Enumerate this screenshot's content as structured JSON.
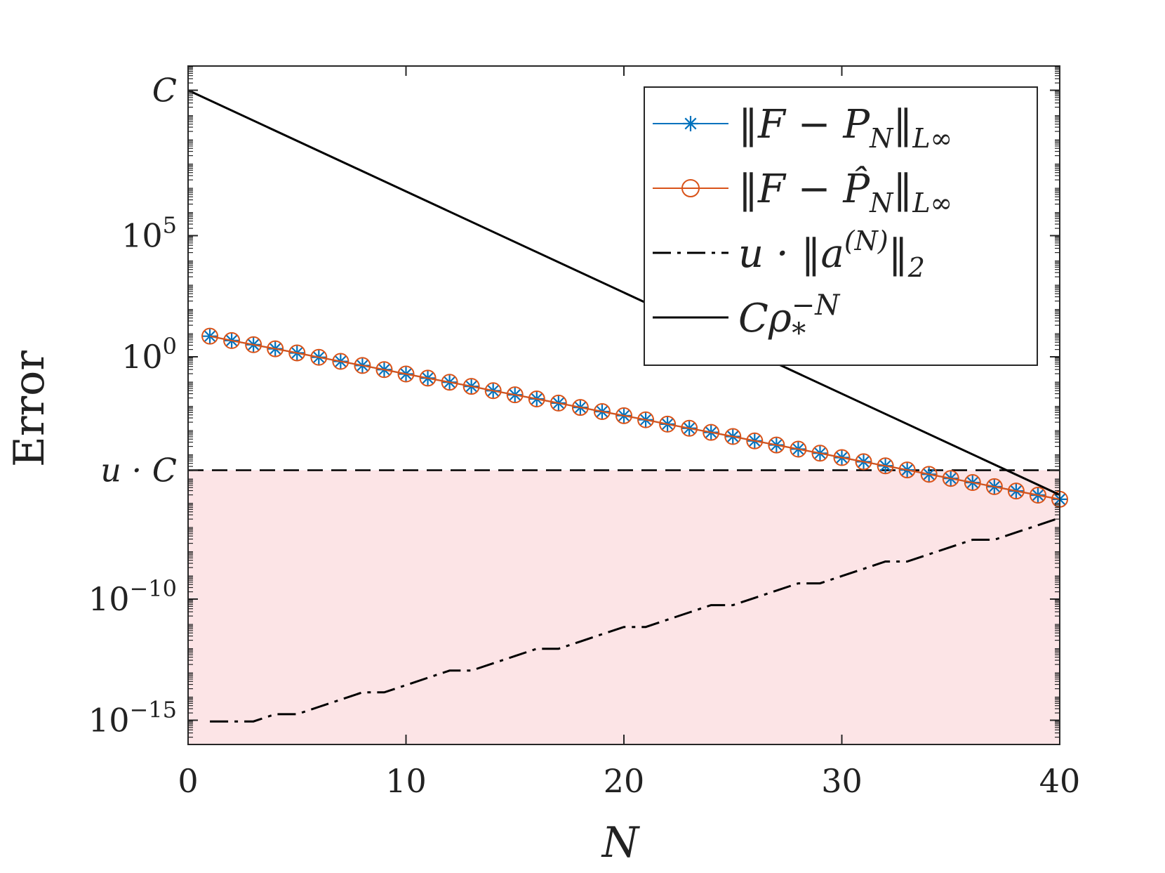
{
  "chart_data": {
    "type": "line",
    "xlabel": "N",
    "ylabel": "Error",
    "xlim": [
      0,
      40
    ],
    "ylim": [
      -16,
      12
    ],
    "y_scale": "log10",
    "x_ticks": [
      0,
      10,
      20,
      30,
      40
    ],
    "y_ticks": [
      {
        "value": 11,
        "label": "C"
      },
      {
        "value": 5,
        "label": "10^5"
      },
      {
        "value": 0,
        "label": "10^0"
      },
      {
        "value": -4.68,
        "label": "u · C"
      },
      {
        "value": -10,
        "label": "10^-10"
      },
      {
        "value": -15,
        "label": "10^-15"
      }
    ],
    "shaded_region": {
      "from": -16,
      "to": -4.68,
      "color": "#fce4e6"
    },
    "hline": {
      "value": -4.68,
      "style": "dashed"
    },
    "legend_position": "top-right",
    "series": [
      {
        "name": "‖F − P_N‖_{L∞}",
        "label_main": "‖F − P",
        "label_sub": "N",
        "label_tail": "‖",
        "label_sub2": "L∞",
        "color": "#0072BD",
        "marker": "asterisk",
        "x": [
          1,
          2,
          3,
          4,
          5,
          6,
          7,
          8,
          9,
          10,
          11,
          12,
          13,
          14,
          15,
          16,
          17,
          18,
          19,
          20,
          21,
          22,
          23,
          24,
          25,
          26,
          27,
          28,
          29,
          30,
          31,
          32,
          33,
          34,
          35,
          36,
          37,
          38,
          39,
          40
        ],
        "y": [
          0.85,
          0.67,
          0.5,
          0.33,
          0.16,
          -0.02,
          -0.19,
          -0.36,
          -0.53,
          -0.71,
          -0.88,
          -1.05,
          -1.22,
          -1.4,
          -1.57,
          -1.74,
          -1.91,
          -2.09,
          -2.26,
          -2.43,
          -2.6,
          -2.78,
          -2.95,
          -3.12,
          -3.29,
          -3.47,
          -3.64,
          -3.81,
          -3.98,
          -4.16,
          -4.33,
          -4.5,
          -4.67,
          -4.85,
          -5.02,
          -5.19,
          -5.36,
          -5.54,
          -5.71,
          -5.88
        ]
      },
      {
        "name": "‖F − P̂_N‖_{L∞}",
        "label_main": "‖F − P̂",
        "label_sub": "N",
        "label_tail": "‖",
        "label_sub2": "L∞",
        "color": "#D95319",
        "marker": "circle",
        "x": [
          1,
          2,
          3,
          4,
          5,
          6,
          7,
          8,
          9,
          10,
          11,
          12,
          13,
          14,
          15,
          16,
          17,
          18,
          19,
          20,
          21,
          22,
          23,
          24,
          25,
          26,
          27,
          28,
          29,
          30,
          31,
          32,
          33,
          34,
          35,
          36,
          37,
          38,
          39,
          40
        ],
        "y": [
          0.85,
          0.67,
          0.5,
          0.33,
          0.16,
          -0.02,
          -0.19,
          -0.36,
          -0.53,
          -0.71,
          -0.88,
          -1.05,
          -1.22,
          -1.4,
          -1.57,
          -1.74,
          -1.91,
          -2.09,
          -2.26,
          -2.43,
          -2.6,
          -2.78,
          -2.95,
          -3.12,
          -3.29,
          -3.47,
          -3.64,
          -3.81,
          -3.98,
          -4.16,
          -4.33,
          -4.5,
          -4.67,
          -4.85,
          -5.02,
          -5.19,
          -5.36,
          -5.54,
          -5.71,
          -5.88
        ]
      },
      {
        "name": "u · ‖a^(N)‖_2",
        "label_main": "u · ‖a",
        "label_sup": "(N)",
        "label_tail": "‖",
        "label_sub2": "2",
        "color": "#000000",
        "style": "dashdot",
        "x": [
          1,
          2,
          3,
          4,
          5,
          6,
          7,
          8,
          9,
          10,
          11,
          12,
          13,
          14,
          15,
          16,
          17,
          18,
          19,
          20,
          21,
          22,
          23,
          24,
          25,
          26,
          27,
          28,
          29,
          30,
          31,
          32,
          33,
          34,
          35,
          36,
          37,
          38,
          39,
          40
        ],
        "y": [
          -15.05,
          -15.05,
          -15.05,
          -14.75,
          -14.75,
          -14.45,
          -14.15,
          -13.85,
          -13.85,
          -13.55,
          -13.25,
          -12.95,
          -12.95,
          -12.65,
          -12.35,
          -12.05,
          -12.05,
          -11.75,
          -11.45,
          -11.15,
          -11.15,
          -10.85,
          -10.55,
          -10.25,
          -10.25,
          -9.95,
          -9.65,
          -9.35,
          -9.35,
          -9.05,
          -8.75,
          -8.45,
          -8.45,
          -8.15,
          -7.85,
          -7.55,
          -7.55,
          -7.25,
          -6.95,
          -6.65
        ]
      },
      {
        "name": "Cρ_*^{−N}",
        "label_main": "Cρ",
        "label_sub": "*",
        "label_sup": "−N",
        "color": "#000000",
        "style": "solid",
        "x": [
          0,
          40
        ],
        "y": [
          11,
          -5.7
        ]
      }
    ]
  }
}
